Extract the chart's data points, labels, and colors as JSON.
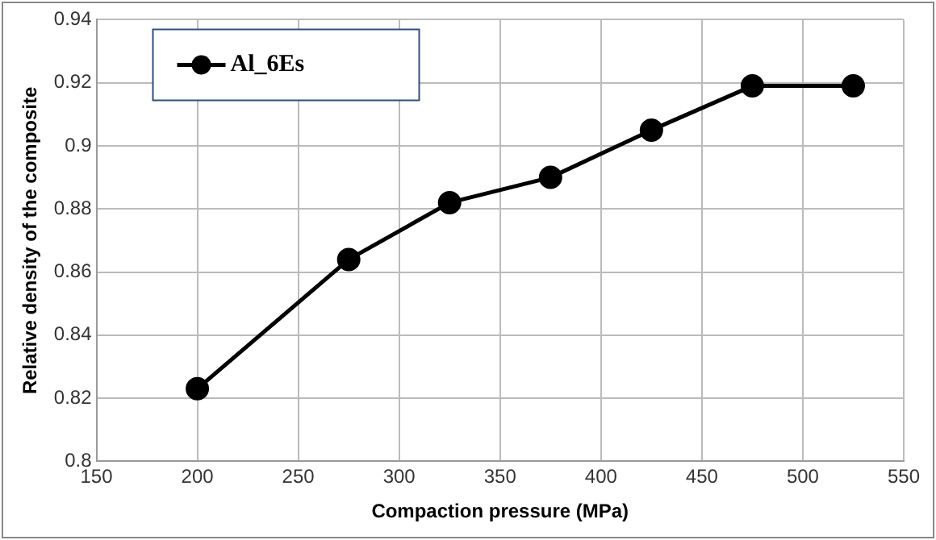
{
  "chart_data": {
    "type": "line",
    "xlabel": "Compaction pressure (MPa)",
    "ylabel": "Relative density of the composite",
    "x": [
      200,
      275,
      325,
      375,
      425,
      475,
      525
    ],
    "series": [
      {
        "name": "Al_6Es",
        "color": "#000000",
        "values": [
          0.823,
          0.864,
          0.882,
          0.89,
          0.905,
          0.919,
          0.919
        ]
      }
    ],
    "xlim": [
      150,
      550
    ],
    "xticks": [
      150,
      200,
      250,
      300,
      350,
      400,
      450,
      500,
      550
    ],
    "ylim": [
      0.8,
      0.94
    ],
    "yticks": [
      0.8,
      0.82,
      0.84,
      0.86,
      0.88,
      0.9,
      0.92,
      0.94
    ],
    "grid": true,
    "legend": "top left",
    "marker": "circle",
    "line_style": "solid"
  }
}
